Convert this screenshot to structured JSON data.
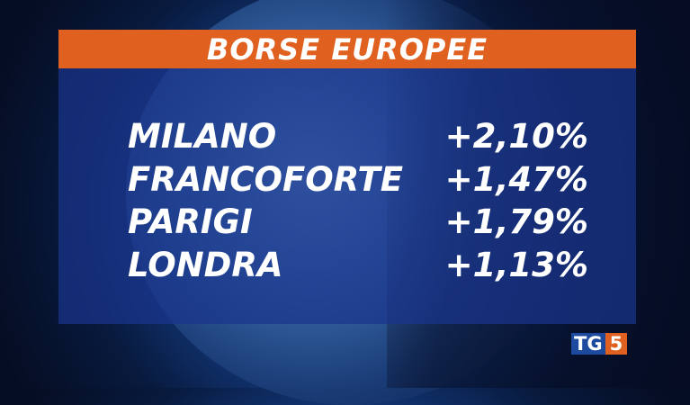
{
  "title": "BORSE EUROPEE",
  "rows": [
    {
      "name": "MILANO",
      "value": "+2,10%"
    },
    {
      "name": "FRANCOFORTE",
      "value": "+1,47%"
    },
    {
      "name": "PARIGI",
      "value": "+1,79%"
    },
    {
      "name": "LONDRA",
      "value": "+1,13%"
    }
  ],
  "logo": {
    "tg": "TG",
    "num": "5"
  },
  "colors": {
    "banner": "#e0601f",
    "panel": "#1a348c",
    "logo_blue": "#1d4a9e"
  }
}
